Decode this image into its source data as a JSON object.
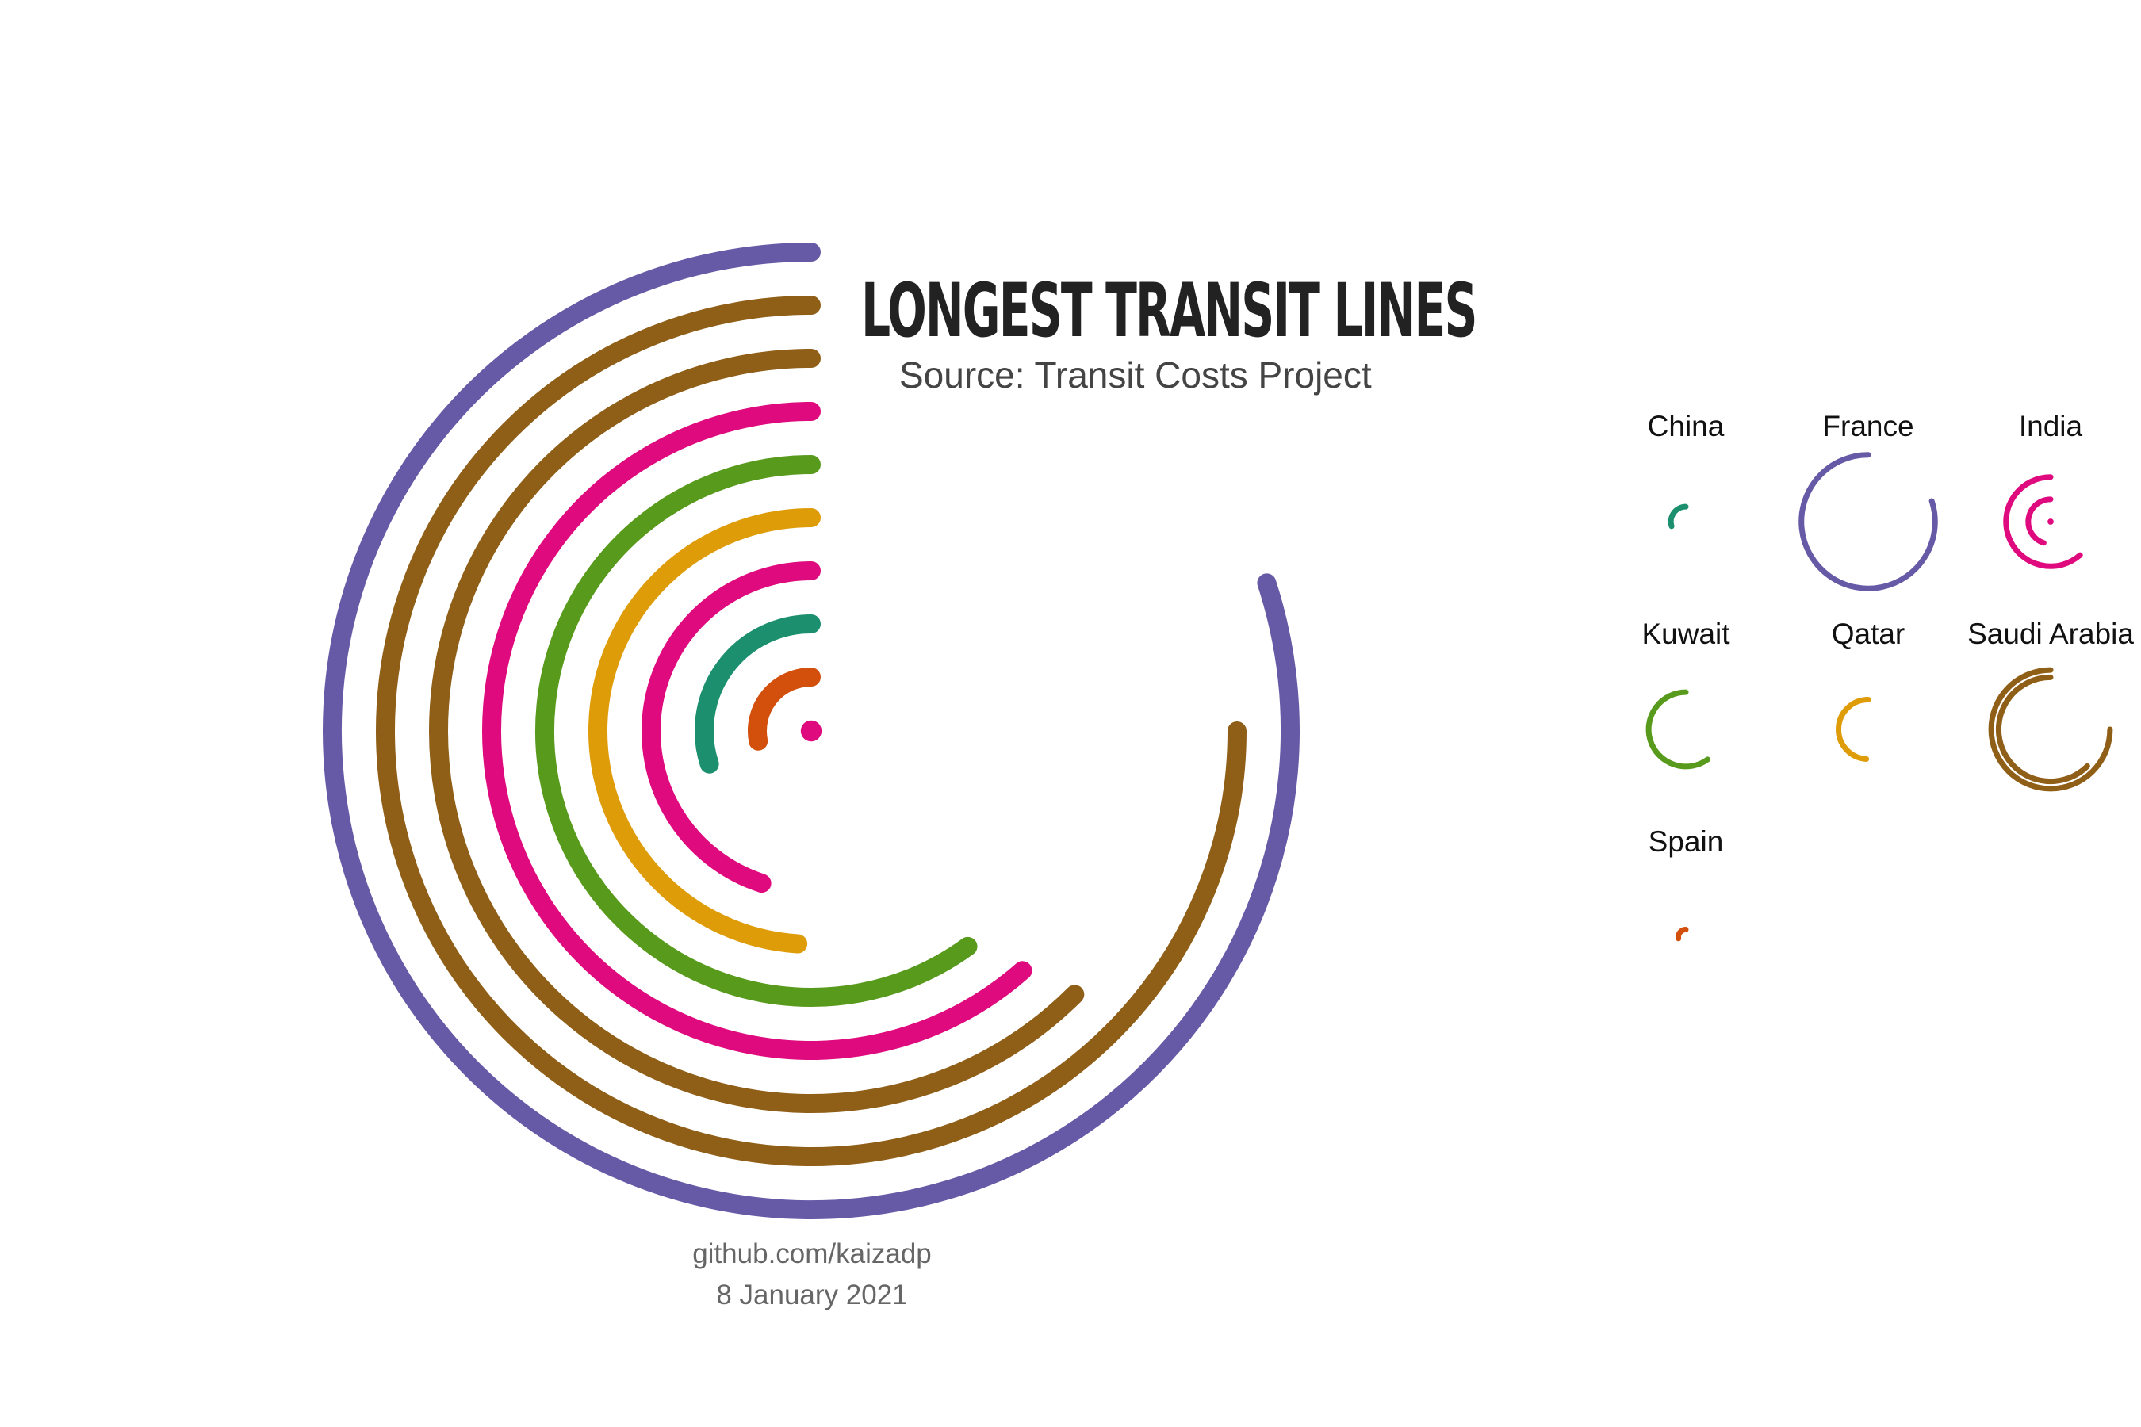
{
  "header": {
    "title": "LONGEST TRANSIT LINES",
    "subtitle": "Source: Transit Costs Project"
  },
  "footer": {
    "credit": "github.com/kaizadp",
    "date": "8 January 2021"
  },
  "colors": {
    "China": "#1b8f6e",
    "France": "#665aa7",
    "India": "#df0a7d",
    "Kuwait": "#589a1c",
    "Qatar": "#df9c09",
    "Saudi Arabia": "#8f5e17",
    "Spain": "#d24f0c"
  },
  "chart_data": {
    "type": "radial_bar",
    "title": "LONGEST TRANSIT LINES",
    "subtitle": "Source: Transit Costs Project",
    "unit": "fraction of full circle",
    "main": [
      {
        "country": "France",
        "value": 0.8
      },
      {
        "country": "Saudi Arabia",
        "value": 0.75
      },
      {
        "country": "Saudi Arabia",
        "value": 0.625
      },
      {
        "country": "India",
        "value": 0.615
      },
      {
        "country": "Kuwait",
        "value": 0.6
      },
      {
        "country": "Qatar",
        "value": 0.49
      },
      {
        "country": "India",
        "value": 0.45
      },
      {
        "country": "China",
        "value": 0.3
      },
      {
        "country": "Spain",
        "value": 0.28
      },
      {
        "country": "India",
        "value": 0.0
      }
    ],
    "panels": [
      {
        "country": "China",
        "values": [
          0.3
        ]
      },
      {
        "country": "France",
        "values": [
          0.8
        ]
      },
      {
        "country": "India",
        "values": [
          0.615,
          0.45,
          0.0
        ]
      },
      {
        "country": "Kuwait",
        "values": [
          0.6
        ]
      },
      {
        "country": "Qatar",
        "values": [
          0.49
        ]
      },
      {
        "country": "Saudi Arabia",
        "values": [
          0.75,
          0.625
        ]
      },
      {
        "country": "Spain",
        "values": [
          0.28
        ]
      }
    ]
  }
}
